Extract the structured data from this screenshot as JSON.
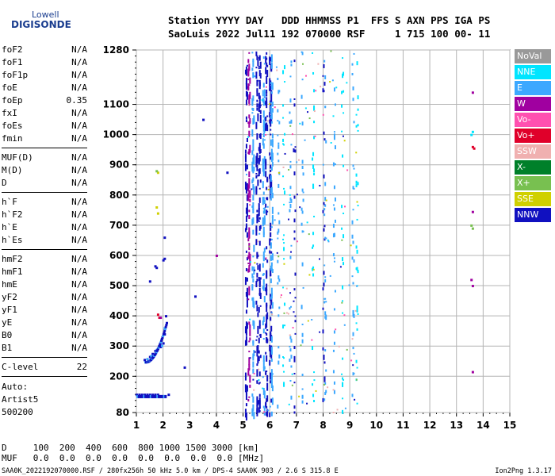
{
  "logo": {
    "line1": "Lowell",
    "line2": "DIGISONDE"
  },
  "header": {
    "line1": "Station YYYY DAY   DDD HHMMSS P1  FFS S AXN PPS IGA PS",
    "line2": "SaoLuis 2022 Jul11 192 070000 RSF     1 715 100 00- 11"
  },
  "params": {
    "group1": [
      {
        "name": "foF2",
        "value": "N/A"
      },
      {
        "name": "foF1",
        "value": "N/A"
      },
      {
        "name": "foF1p",
        "value": "N/A"
      },
      {
        "name": "foE",
        "value": "N/A"
      },
      {
        "name": "foEp",
        "value": "0.35"
      },
      {
        "name": "fxI",
        "value": "N/A"
      },
      {
        "name": "foEs",
        "value": "N/A"
      },
      {
        "name": "fmin",
        "value": "N/A"
      }
    ],
    "group2": [
      {
        "name": "MUF(D)",
        "value": "N/A"
      },
      {
        "name": "M(D)",
        "value": "N/A"
      },
      {
        "name": "D",
        "value": "N/A"
      }
    ],
    "group3": [
      {
        "name": "h`F",
        "value": "N/A"
      },
      {
        "name": "h`F2",
        "value": "N/A"
      },
      {
        "name": "h`E",
        "value": "N/A"
      },
      {
        "name": "h`Es",
        "value": "N/A"
      }
    ],
    "group4": [
      {
        "name": "hmF2",
        "value": "N/A"
      },
      {
        "name": "hmF1",
        "value": "N/A"
      },
      {
        "name": "hmE",
        "value": "N/A"
      },
      {
        "name": "yF2",
        "value": "N/A"
      },
      {
        "name": "yF1",
        "value": "N/A"
      },
      {
        "name": "yE",
        "value": "N/A"
      },
      {
        "name": "B0",
        "value": "N/A"
      },
      {
        "name": "B1",
        "value": "N/A"
      }
    ],
    "clevel": {
      "name": "C-level",
      "value": "22"
    }
  },
  "auto": {
    "line1": "Auto:",
    "line2": "Artist5",
    "line3": "500200"
  },
  "legend": [
    {
      "label": "NoVal",
      "color": "#999999"
    },
    {
      "label": "NNE",
      "color": "#00e5ff"
    },
    {
      "label": "E",
      "color": "#3ca8ff"
    },
    {
      "label": "W",
      "color": "#a000a0"
    },
    {
      "label": "Vo-",
      "color": "#ff50b0"
    },
    {
      "label": "Vo+",
      "color": "#e0002a"
    },
    {
      "label": "SSW",
      "color": "#f0b0b0"
    },
    {
      "label": "X-",
      "color": "#00802a"
    },
    {
      "label": "X+",
      "color": "#78c050"
    },
    {
      "label": "SSE",
      "color": "#d0d000"
    },
    {
      "label": "NNW",
      "color": "#1010c0"
    }
  ],
  "bottom": {
    "row1": "D     100  200  400  600  800 1000 1500 3000 [km]",
    "row2": "MUF   0.0  0.0  0.0  0.0  0.0  0.0  0.0  0.0 [MHz]"
  },
  "footer": {
    "text": "SAA0K_2022192070000.RSF / 280fx256h 50 kHz 5.0 km / DPS-4 SAA0K 903 / 2.6 S 315.8 E",
    "version": "Ion2Png 1.3.17"
  },
  "chart_data": {
    "type": "scatter",
    "xlim": [
      1,
      15
    ],
    "ylim": [
      80,
      1280
    ],
    "x_ticks": [
      "1",
      "2",
      "3",
      "4",
      "5",
      "6",
      "7",
      "8",
      "9",
      "10",
      "11",
      "12",
      "13",
      "14",
      "15"
    ],
    "y_ticks": [
      "80",
      "200",
      "300",
      "400",
      "500",
      "600",
      "700",
      "800",
      "900",
      "1000",
      "1100",
      "1280"
    ],
    "grid": true,
    "traces": [
      {
        "name": "E-trace",
        "color": "#1010c0",
        "x": [
          1.3,
          1.5,
          1.6,
          1.7,
          1.8,
          1.9,
          2.0,
          2.05,
          2.1
        ],
        "y": [
          255,
          265,
          275,
          285,
          292,
          298,
          310,
          340,
          400
        ]
      },
      {
        "name": "E-trace-E",
        "color": "#3ca8ff",
        "x": [
          1.4,
          1.55,
          1.75,
          1.95,
          2.05
        ],
        "y": [
          258,
          268,
          288,
          302,
          360
        ]
      },
      {
        "name": "low-band",
        "color": "#1010c0",
        "x": [
          1.0,
          1.1,
          1.2,
          1.3,
          1.4,
          1.5,
          1.6,
          1.7,
          1.8,
          2.2
        ],
        "y": [
          140,
          140,
          140,
          140,
          140,
          140,
          140,
          140,
          140,
          140
        ]
      },
      {
        "name": "blob",
        "color": "#1010c0",
        "x": [
          1.7,
          1.75,
          2.0,
          2.05,
          1.5,
          2.05,
          2.8,
          3.2,
          3.5,
          4.4
        ],
        "y": [
          565,
          560,
          585,
          590,
          515,
          660,
          230,
          465,
          1050,
          875
        ]
      },
      {
        "name": "vo",
        "color": "#e0002a",
        "x": [
          1.8,
          13.6,
          13.65,
          1.85
        ],
        "y": [
          405,
          960,
          955,
          395
        ]
      },
      {
        "name": "w",
        "color": "#a000a0",
        "x": [
          13.6,
          13.6,
          13.55,
          13.6,
          13.6,
          1.9,
          4.0
        ],
        "y": [
          1140,
          745,
          520,
          500,
          215,
          395,
          600
        ]
      },
      {
        "name": "sse",
        "color": "#d0d000",
        "x": [
          1.8,
          1.8,
          1.75
        ],
        "y": [
          875,
          740,
          760
        ]
      },
      {
        "name": "xplus",
        "color": "#78c050",
        "x": [
          1.75,
          13.55,
          13.6
        ],
        "y": [
          880,
          700,
          690
        ]
      },
      {
        "name": "nne",
        "color": "#00e5ff",
        "x": [
          13.6,
          13.55
        ],
        "y": [
          1010,
          1000
        ]
      }
    ],
    "columns": [
      {
        "x": 5.1,
        "color": "#1010c0"
      },
      {
        "x": 5.2,
        "color": "#a000a0"
      },
      {
        "x": 5.35,
        "color": "#3ca8ff"
      },
      {
        "x": 5.5,
        "color": "#1010c0"
      },
      {
        "x": 5.6,
        "color": "#1010c0"
      },
      {
        "x": 5.75,
        "color": "#3ca8ff"
      },
      {
        "x": 5.85,
        "color": "#1010c0"
      },
      {
        "x": 6.0,
        "color": "#1010c0"
      },
      {
        "x": 6.05,
        "color": "#3ca8ff"
      },
      {
        "x": 6.3,
        "color": "#3ca8ff"
      },
      {
        "x": 6.5,
        "color": "#00e5ff"
      },
      {
        "x": 6.75,
        "color": "#3ca8ff"
      },
      {
        "x": 6.9,
        "color": "#1010c0"
      },
      {
        "x": 7.2,
        "color": "#3ca8ff"
      },
      {
        "x": 7.6,
        "color": "#00e5ff"
      },
      {
        "x": 8.0,
        "color": "#1010c0"
      },
      {
        "x": 8.05,
        "color": "#3ca8ff"
      },
      {
        "x": 8.4,
        "color": "#3ca8ff"
      },
      {
        "x": 8.7,
        "color": "#00e5ff"
      },
      {
        "x": 9.1,
        "color": "#3ca8ff"
      },
      {
        "x": 9.25,
        "color": "#00e5ff"
      }
    ]
  }
}
